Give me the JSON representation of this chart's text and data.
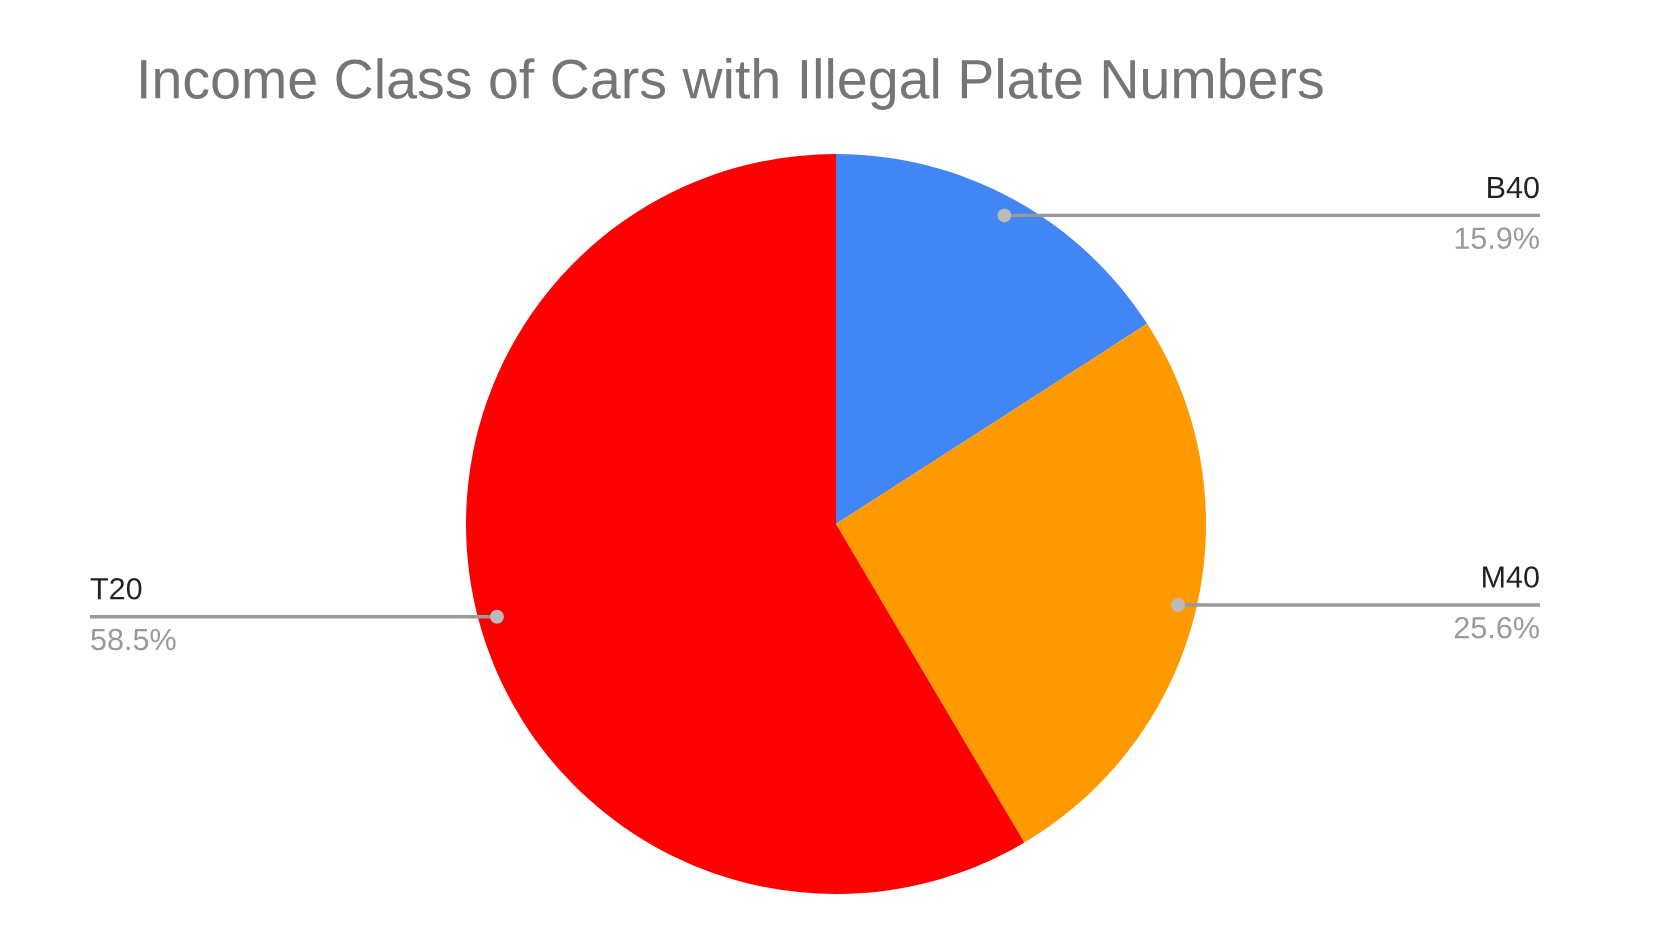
{
  "chart_data": {
    "type": "pie",
    "title": "Income Class of Cars with Illegal Plate Numbers",
    "categories": [
      "B40",
      "M40",
      "T20"
    ],
    "values": [
      15.9,
      25.6,
      58.5
    ],
    "colors": [
      "#4285f4",
      "#ff9900",
      "#ff0000"
    ],
    "value_labels": [
      "15.9%",
      "25.6%",
      "58.5%"
    ]
  }
}
